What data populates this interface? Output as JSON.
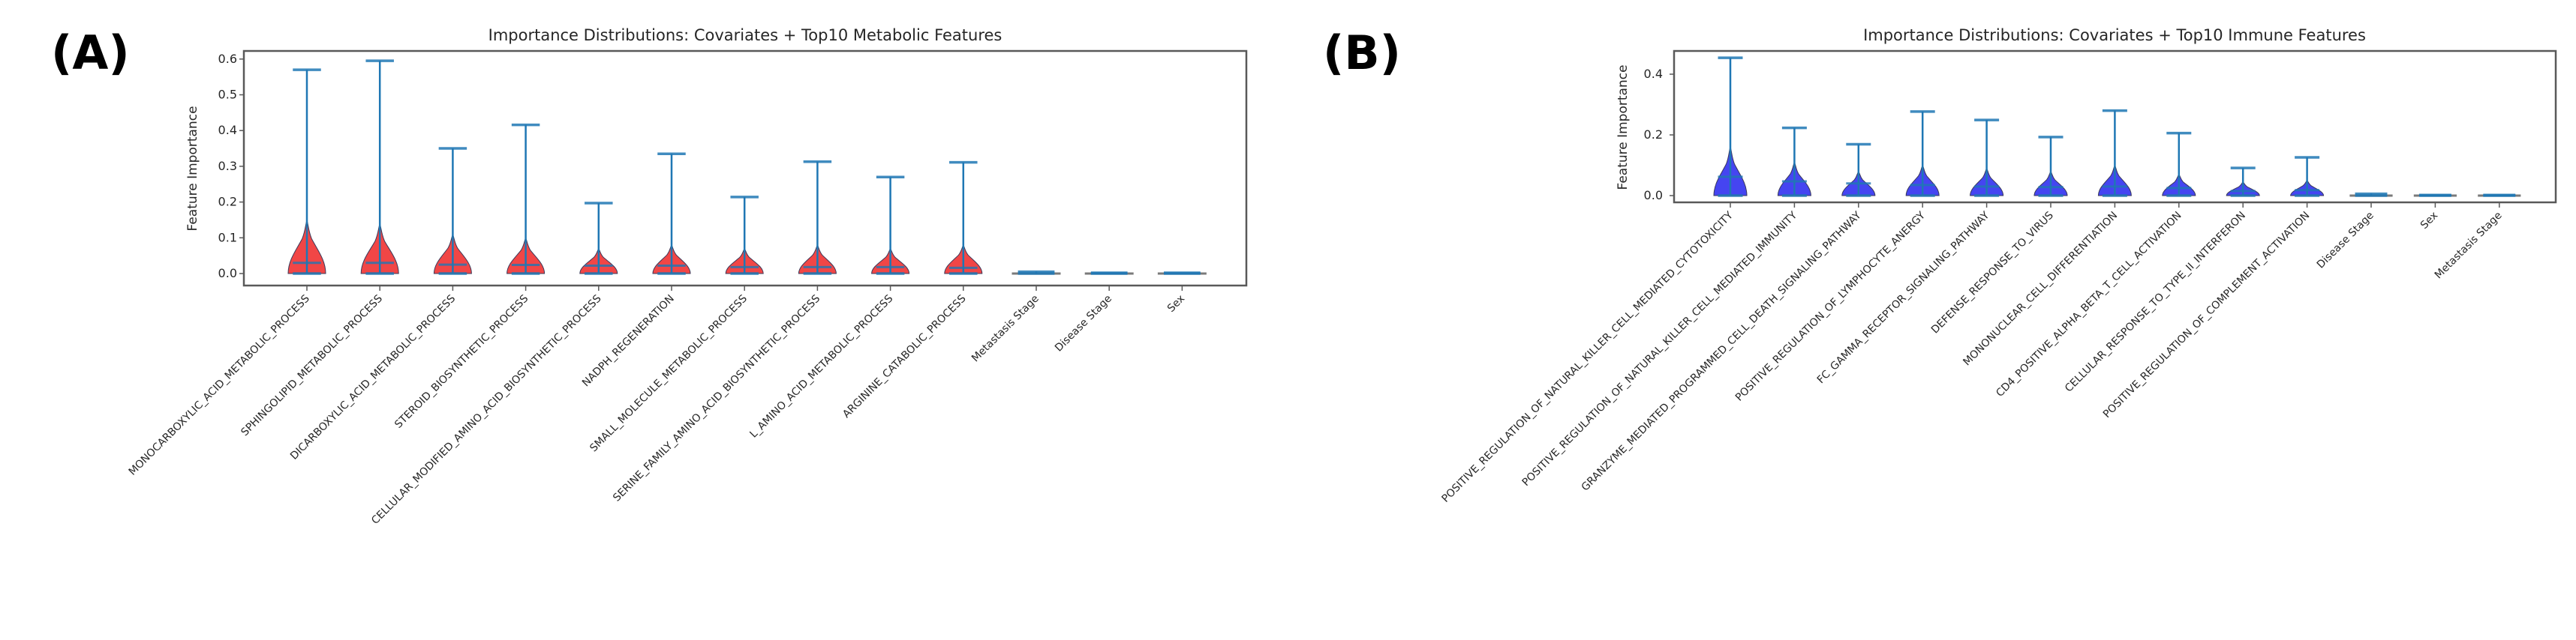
{
  "panels": [
    {
      "id": "A",
      "label": "(A)"
    },
    {
      "id": "B",
      "label": "(B)"
    }
  ],
  "colors": {
    "metabolic_fill": "#f03c3c",
    "immune_fill": "#3b3bf0",
    "whisker": "#1f77b4",
    "frame": "#595959"
  },
  "chart_data": [
    {
      "type": "violin",
      "panel": "A",
      "title": "Importance Distributions: Covariates + Top10 Metabolic Features",
      "xlabel": "",
      "ylabel": "Feature Importance",
      "ylim": [
        -0.025,
        0.625
      ],
      "yticks": [
        0.0,
        0.1,
        0.2,
        0.3,
        0.4,
        0.5,
        0.6
      ],
      "ytick_labels": [
        "0.0",
        "0.1",
        "0.2",
        "0.3",
        "0.4",
        "0.5",
        "0.6"
      ],
      "fill_color": "#f03c3c",
      "categories": [
        "MONOCARBOXYLIC_ACID_METABOLIC_PROCESS",
        "SPHINGOLIPID_METABOLIC_PROCESS",
        "DICARBOXYLIC_ACID_METABOLIC_PROCESS",
        "STEROID_BIOSYNTHETIC_PROCESS",
        "CELLULAR_MODIFIED_AMINO_ACID_BIOSYNTHETIC_PROCESS",
        "NADPH_REGENERATION",
        "SMALL_MOLECULE_METABOLIC_PROCESS",
        "SERINE_FAMILY_AMINO_ACID_BIOSYNTHETIC_PROCESS",
        "L_AMINO_ACID_METABOLIC_PROCESS",
        "ARGININE_CATABOLIC_PROCESS",
        "Metastasis Stage",
        "Disease Stage",
        "Sex"
      ],
      "series": [
        {
          "name": "min",
          "values": [
            0.0,
            0.0,
            0.0,
            0.0,
            0.0,
            0.0,
            0.0,
            0.0,
            0.0,
            0.0,
            0.0,
            0.0,
            0.0
          ]
        },
        {
          "name": "median",
          "values": [
            0.03,
            0.03,
            0.025,
            0.024,
            0.022,
            0.022,
            0.018,
            0.018,
            0.018,
            0.016,
            0.002,
            0.001,
            0.001
          ]
        },
        {
          "name": "max",
          "values": [
            0.57,
            0.595,
            0.35,
            0.416,
            0.197,
            0.335,
            0.214,
            0.313,
            0.27,
            0.311,
            0.005,
            0.002,
            0.002
          ]
        },
        {
          "name": "body_top",
          "values": [
            0.15,
            0.14,
            0.11,
            0.1,
            0.07,
            0.08,
            0.07,
            0.08,
            0.07,
            0.08,
            0.005,
            0.002,
            0.002
          ]
        }
      ]
    },
    {
      "type": "violin",
      "panel": "B",
      "title": "Importance Distributions: Covariates + Top10 Immune Features",
      "xlabel": "",
      "ylabel": "Feature Importance",
      "ylim": [
        -0.022,
        0.478
      ],
      "yticks": [
        0.0,
        0.2,
        0.4
      ],
      "ytick_labels": [
        "0.0",
        "0.2",
        "0.4"
      ],
      "fill_color": "#3b3bf0",
      "categories": [
        "POSITIVE_REGULATION_OF_NATURAL_KILLER_CELL_MEDIATED_CYTOTOXICITY",
        "POSITIVE_REGULATION_OF_NATURAL_KILLER_CELL_MEDIATED_IMMUNITY",
        "GRANZYME_MEDIATED_PROGRAMMED_CELL_DEATH_SIGNALING_PATHWAY",
        "POSITIVE_REGULATION_OF_LYMPHOCYTE_ANERGY",
        "FC_GAMMA_RECEPTOR_SIGNALING_PATHWAY",
        "DEFENSE_RESPONSE_TO_VIRUS",
        "MONONUCLEAR_CELL_DIFFERENTIATION",
        "CD4_POSITIVE_ALPHA_BETA_T_CELL_ACTIVATION",
        "CELLULAR_RESPONSE_TO_TYPE_II_INTERFERON",
        "POSITIVE_REGULATION_OF_COMPLEMENT_ACTIVATION",
        "Disease Stage",
        "Sex",
        "Metastasis Stage"
      ],
      "series": [
        {
          "name": "min",
          "values": [
            0.0,
            0.0,
            0.0,
            0.0,
            0.0,
            0.0,
            0.0,
            0.0,
            0.0,
            0.0,
            0.0,
            0.0,
            0.0
          ]
        },
        {
          "name": "median",
          "values": [
            0.062,
            0.047,
            0.04,
            0.035,
            0.03,
            0.028,
            0.03,
            0.025,
            0.015,
            0.018,
            0.002,
            0.001,
            0.001
          ]
        },
        {
          "name": "max",
          "values": [
            0.454,
            0.223,
            0.169,
            0.277,
            0.249,
            0.193,
            0.28,
            0.206,
            0.091,
            0.126,
            0.006,
            0.002,
            0.002
          ]
        },
        {
          "name": "body_top",
          "values": [
            0.16,
            0.11,
            0.08,
            0.1,
            0.09,
            0.08,
            0.1,
            0.07,
            0.045,
            0.05,
            0.006,
            0.002,
            0.002
          ]
        }
      ]
    }
  ]
}
